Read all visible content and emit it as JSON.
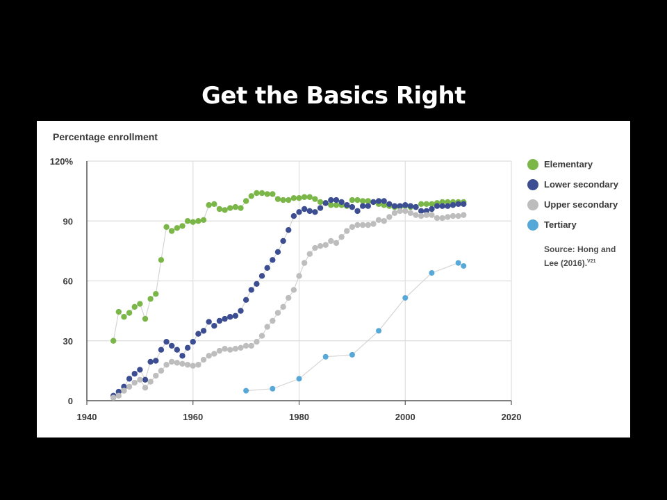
{
  "slide": {
    "title": "Get the Basics Right"
  },
  "chart_data": {
    "type": "scatter",
    "ylabel": "Percentage enrollment",
    "xlabel": "",
    "xlim": [
      1940,
      2020
    ],
    "ylim": [
      0,
      120
    ],
    "x_ticks": [
      "1940",
      "1960",
      "1980",
      "2000",
      "2020"
    ],
    "y_ticks": [
      "0",
      "30",
      "60",
      "90",
      "120%"
    ],
    "grid": true,
    "legend_position": "right",
    "source": {
      "text": "Source: Hong and Lee (2016).",
      "superscript": "V21"
    },
    "series": [
      {
        "name": "Elementary",
        "color": "#7ab648",
        "x": [
          1945,
          1946,
          1947,
          1948,
          1949,
          1950,
          1951,
          1952,
          1953,
          1954,
          1955,
          1956,
          1957,
          1958,
          1959,
          1960,
          1961,
          1962,
          1963,
          1964,
          1965,
          1966,
          1967,
          1968,
          1969,
          1970,
          1971,
          1972,
          1973,
          1974,
          1975,
          1976,
          1977,
          1978,
          1979,
          1980,
          1981,
          1982,
          1983,
          1984,
          1985,
          1986,
          1987,
          1988,
          1989,
          1990,
          1991,
          1992,
          1993,
          1994,
          1995,
          1996,
          1997,
          1998,
          1999,
          2000,
          2001,
          2002,
          2003,
          2004,
          2005,
          2006,
          2007,
          2008,
          2009,
          2010,
          2011
        ],
        "y": [
          30,
          44.5,
          42,
          44,
          47,
          48.5,
          41,
          51,
          53.5,
          70.5,
          87,
          85,
          86.5,
          87.5,
          90,
          89.5,
          90,
          90.5,
          98,
          98.5,
          96,
          95.5,
          96.5,
          97,
          96.5,
          100,
          102.5,
          104,
          104,
          103.5,
          103.5,
          101,
          100.5,
          100.5,
          101.5,
          101.5,
          102,
          102,
          101,
          99.5,
          99,
          98,
          98,
          98,
          97.5,
          100.5,
          100.5,
          100,
          100,
          99.5,
          98.5,
          98,
          97.5,
          97,
          97,
          97.5,
          97,
          97,
          98.5,
          98.5,
          98.5,
          99,
          99.5,
          99.5,
          99.5,
          99.5,
          99.5
        ]
      },
      {
        "name": "Lower secondary",
        "color": "#3c4e91",
        "x": [
          1945,
          1946,
          1947,
          1948,
          1949,
          1950,
          1951,
          1952,
          1953,
          1954,
          1955,
          1956,
          1957,
          1958,
          1959,
          1960,
          1961,
          1962,
          1963,
          1964,
          1965,
          1966,
          1967,
          1968,
          1969,
          1970,
          1971,
          1972,
          1973,
          1974,
          1975,
          1976,
          1977,
          1978,
          1979,
          1980,
          1981,
          1982,
          1983,
          1984,
          1985,
          1986,
          1987,
          1988,
          1989,
          1990,
          1991,
          1992,
          1993,
          1994,
          1995,
          1996,
          1997,
          1998,
          1999,
          2000,
          2001,
          2002,
          2003,
          2004,
          2005,
          2006,
          2007,
          2008,
          2009,
          2010,
          2011
        ],
        "y": [
          2.5,
          4.5,
          7,
          11,
          13.5,
          15.5,
          10.5,
          19.5,
          20,
          25.5,
          29.5,
          27.5,
          25.5,
          22.5,
          26.5,
          29.5,
          33.5,
          35,
          39.5,
          37.5,
          40,
          41,
          42,
          42.5,
          45,
          50.5,
          55.5,
          58.5,
          62.5,
          66.5,
          70.5,
          74.5,
          80,
          85.5,
          92.5,
          94.5,
          96,
          95,
          94.5,
          96.5,
          99,
          100.5,
          100.5,
          99.5,
          98,
          97,
          95,
          97.5,
          97.5,
          99.5,
          100,
          100,
          98.5,
          97.5,
          97.5,
          98,
          97.5,
          97,
          95,
          95,
          96,
          97.5,
          97.5,
          97.5,
          98,
          98.5,
          98.5
        ]
      },
      {
        "name": "Upper secondary",
        "color": "#bdbdbd",
        "x": [
          1945,
          1946,
          1947,
          1948,
          1949,
          1950,
          1951,
          1952,
          1953,
          1954,
          1955,
          1956,
          1957,
          1958,
          1959,
          1960,
          1961,
          1962,
          1963,
          1964,
          1965,
          1966,
          1967,
          1968,
          1969,
          1970,
          1971,
          1972,
          1973,
          1974,
          1975,
          1976,
          1977,
          1978,
          1979,
          1980,
          1981,
          1982,
          1983,
          1984,
          1985,
          1986,
          1987,
          1988,
          1989,
          1990,
          1991,
          1992,
          1993,
          1994,
          1995,
          1996,
          1997,
          1998,
          1999,
          2000,
          2001,
          2002,
          2003,
          2004,
          2005,
          2006,
          2007,
          2008,
          2009,
          2010,
          2011
        ],
        "y": [
          1.5,
          2.5,
          5,
          7,
          9,
          10.5,
          6.5,
          9.5,
          12.5,
          15,
          18,
          19.5,
          19,
          18.5,
          18,
          17.5,
          18,
          20.5,
          22.5,
          23.5,
          25,
          26,
          25.5,
          26,
          26.5,
          27.5,
          27.5,
          29.5,
          32.5,
          37,
          40,
          44,
          47,
          51.5,
          55.5,
          62.5,
          69,
          73.5,
          76.5,
          77.5,
          78,
          80,
          79,
          82,
          85,
          87,
          88,
          88,
          88,
          88.5,
          90.5,
          90,
          92,
          94,
          95,
          95,
          94,
          93,
          92.5,
          93,
          93,
          91.5,
          91.5,
          92,
          92.5,
          92.5,
          93
        ]
      },
      {
        "name": "Tertiary",
        "color": "#55a8d8",
        "x": [
          1970,
          1975,
          1980,
          1985,
          1990,
          1995,
          2000,
          2005,
          2010,
          2011
        ],
        "y": [
          5,
          6,
          11,
          22,
          23,
          35,
          51.5,
          64,
          69,
          67.5
        ]
      }
    ]
  }
}
